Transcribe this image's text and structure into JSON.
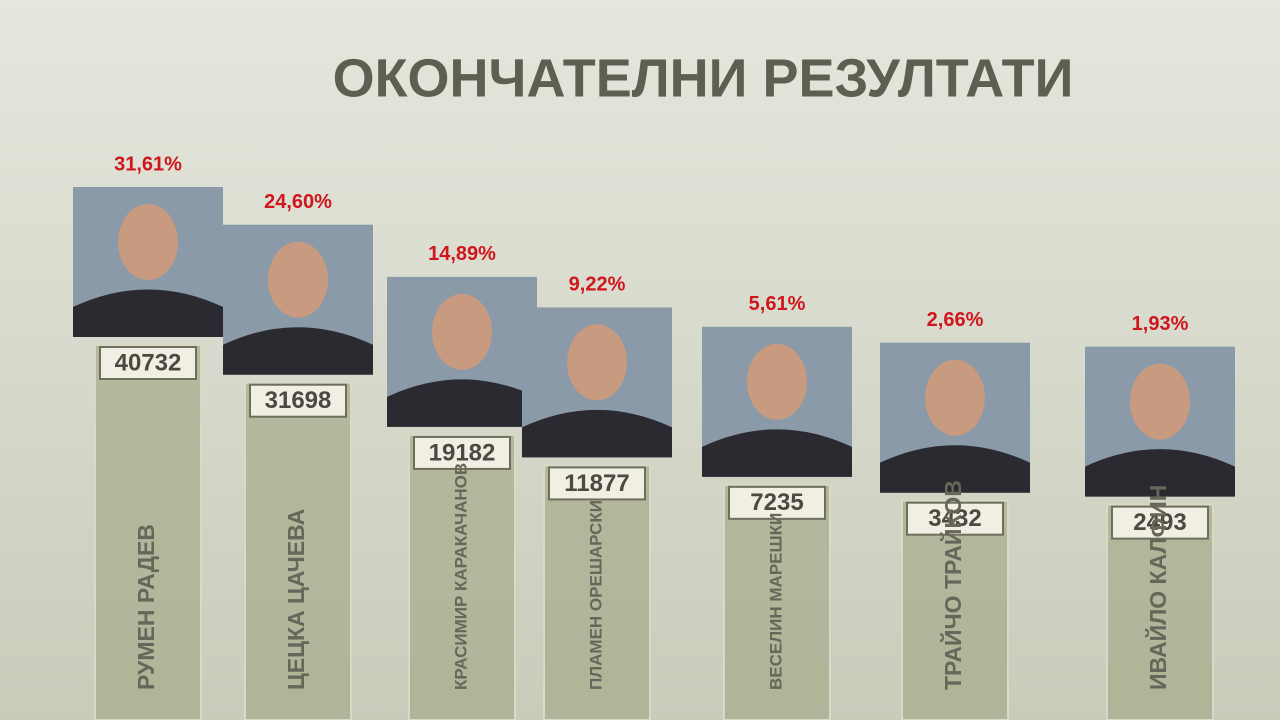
{
  "chart_data": {
    "type": "bar",
    "title": "ОКОНЧАТЕЛНИ РЕЗУЛТАТИ",
    "categories": [
      "РУМЕН РАДЕВ",
      "ЦЕЦКА ЦАЧЕВА",
      "КРАСИМИР КАРАКАЧАНОВ",
      "ПЛАМЕН ОРЕШАРСКИ",
      "ВЕСЕЛИН МАРЕШКИ",
      "ТРАЙЧО ТРАЙКОВ",
      "ИВАЙЛО КАЛФИН"
    ],
    "values": [
      40732,
      31698,
      19182,
      11877,
      7235,
      3432,
      2493
    ],
    "shares": [
      31.61,
      24.6,
      14.89,
      9.22,
      5.61,
      2.66,
      1.93
    ],
    "share_labels": [
      "31,61%",
      "24,60%",
      "14,89%",
      "9,22%",
      "5,61%",
      "2,66%",
      "1,93%"
    ],
    "color": "#a8ac8c"
  }
}
